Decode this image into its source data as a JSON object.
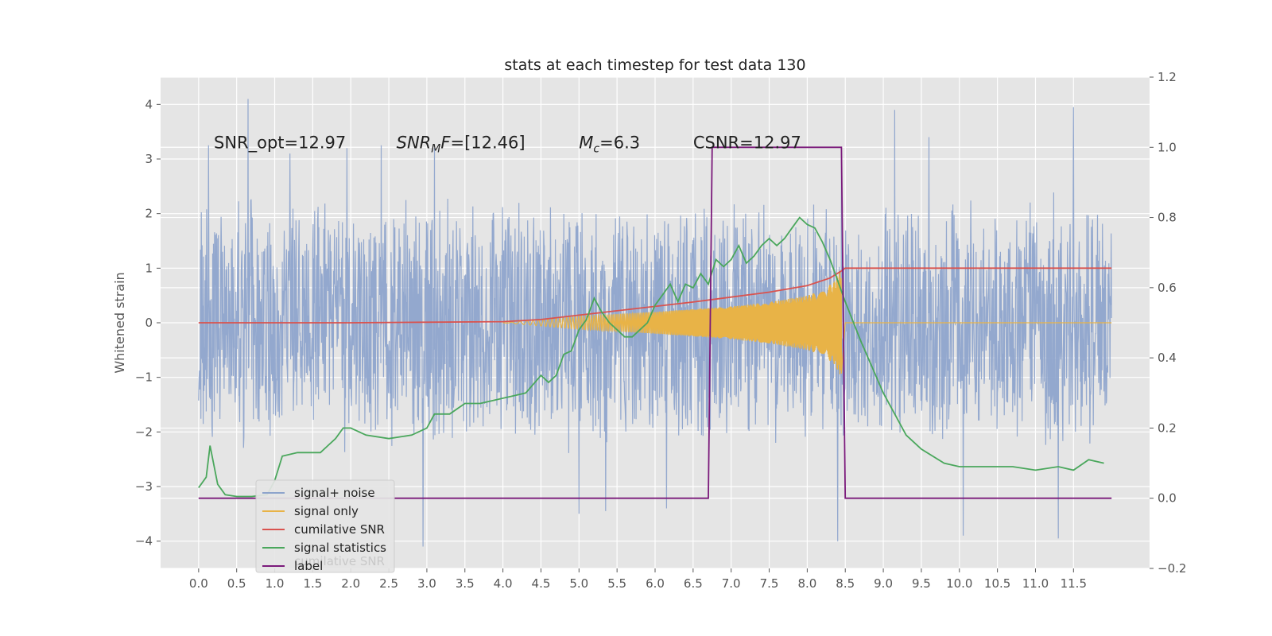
{
  "chart_data": {
    "type": "line",
    "title": "stats at each timestep for test data 130",
    "ylabel": "Whitened strain",
    "ylabel_right": "",
    "xlim": [
      -0.5,
      12.5
    ],
    "ylim": [
      -4.5,
      4.5
    ],
    "ylim_right": [
      -0.2,
      1.2
    ],
    "x_ticks": [
      0.0,
      0.5,
      1.0,
      1.5,
      2.0,
      2.5,
      3.0,
      3.5,
      4.0,
      4.5,
      5.0,
      5.5,
      6.0,
      6.5,
      7.0,
      7.5,
      8.0,
      8.5,
      9.0,
      9.5,
      10.0,
      10.5,
      11.0,
      11.5
    ],
    "x_tick_labels": [
      "0.0",
      "0.5",
      "1.0",
      "1.5",
      "2.0",
      "2.5",
      "3.0",
      "3.5",
      "4.0",
      "4.5",
      "5.0",
      "5.5",
      "6.0",
      "6.5",
      "7.0",
      "7.5",
      "8.0",
      "8.5",
      "9.0",
      "9.5",
      "10.0",
      "10.5",
      "11.0",
      "11.5"
    ],
    "y_ticks": [
      -4,
      -3,
      -2,
      -1,
      0,
      1,
      2,
      3,
      4
    ],
    "y_tick_labels": [
      "−4",
      "−3",
      "−2",
      "−1",
      "0",
      "1",
      "2",
      "3",
      "4"
    ],
    "y_ticks_right": [
      -0.2,
      0.0,
      0.2,
      0.4,
      0.6,
      0.8,
      1.0,
      1.2
    ],
    "y_tick_labels_right": [
      "−0.2",
      "0.0",
      "0.2",
      "0.4",
      "0.6",
      "0.8",
      "1.0",
      "1.2"
    ],
    "grid": true,
    "legend_position": "bottom-left",
    "annotations": [
      {
        "text": "SNR_opt=12.97",
        "x": 0.2,
        "y": 3.2
      },
      {
        "text": "SNR_MF=[12.46]",
        "x": 2.6,
        "y": 3.2
      },
      {
        "text": "M_c=6.3",
        "x": 5.0,
        "y": 3.2
      },
      {
        "text": "CSNR=12.97",
        "x": 6.5,
        "y": 3.2
      }
    ],
    "series": [
      {
        "name": "signal+ noise",
        "axis": "left",
        "color": "#8ea4cc",
        "kind": "noise",
        "x_range": [
          0.0,
          12.0
        ],
        "envelope": 2.4,
        "peaks": [
          {
            "x": 0.13,
            "y": 3.25
          },
          {
            "x": 0.65,
            "y": 4.1
          },
          {
            "x": 1.2,
            "y": 3.1
          },
          {
            "x": 1.95,
            "y": 3.2
          },
          {
            "x": 2.4,
            "y": 3.25
          },
          {
            "x": 3.1,
            "y": 3.2
          },
          {
            "x": 8.45,
            "y": 3.1
          },
          {
            "x": 9.15,
            "y": 3.9
          },
          {
            "x": 9.6,
            "y": 3.4
          },
          {
            "x": 11.5,
            "y": 3.95
          },
          {
            "x": 2.95,
            "y": -4.1
          },
          {
            "x": 8.4,
            "y": -4.0
          },
          {
            "x": 10.05,
            "y": -3.9
          },
          {
            "x": 11.3,
            "y": -3.95
          },
          {
            "x": 5.0,
            "y": -3.5
          },
          {
            "x": 5.35,
            "y": -3.45
          },
          {
            "x": 6.15,
            "y": -3.4
          }
        ]
      },
      {
        "name": "signal only",
        "axis": "left",
        "color": "#e8b347",
        "kind": "chirp",
        "x_start": 4.0,
        "x_merger": 8.45,
        "x_end": 12.0,
        "envelope_points": [
          [
            4.0,
            0.0
          ],
          [
            5.0,
            0.12
          ],
          [
            6.0,
            0.2
          ],
          [
            7.0,
            0.3
          ],
          [
            7.5,
            0.38
          ],
          [
            8.0,
            0.5
          ],
          [
            8.2,
            0.6
          ],
          [
            8.35,
            0.75
          ],
          [
            8.45,
            1.0
          ]
        ]
      },
      {
        "name": "cumilative SNR",
        "axis": "left",
        "color": "#d9534f",
        "x": [
          0.0,
          1.0,
          2.0,
          3.0,
          4.0,
          4.5,
          5.0,
          5.5,
          6.0,
          6.5,
          7.0,
          7.5,
          8.0,
          8.3,
          8.45,
          8.5,
          10.0,
          12.0
        ],
        "y": [
          0.0,
          0.0,
          0.0,
          0.01,
          0.02,
          0.06,
          0.14,
          0.22,
          0.3,
          0.38,
          0.47,
          0.56,
          0.68,
          0.82,
          0.95,
          1.0,
          1.0,
          1.0
        ]
      },
      {
        "name": "signal statistics",
        "axis": "right",
        "color": "#4aa75c",
        "x": [
          0.0,
          0.1,
          0.15,
          0.25,
          0.35,
          0.5,
          0.7,
          0.9,
          1.0,
          1.1,
          1.3,
          1.6,
          1.7,
          1.8,
          1.9,
          2.0,
          2.2,
          2.5,
          2.8,
          3.0,
          3.1,
          3.3,
          3.5,
          3.7,
          3.9,
          4.1,
          4.3,
          4.5,
          4.6,
          4.7,
          4.8,
          4.9,
          5.0,
          5.1,
          5.2,
          5.3,
          5.4,
          5.5,
          5.6,
          5.7,
          5.8,
          5.9,
          6.0,
          6.1,
          6.2,
          6.3,
          6.4,
          6.5,
          6.6,
          6.7,
          6.8,
          6.9,
          7.0,
          7.1,
          7.2,
          7.3,
          7.4,
          7.5,
          7.6,
          7.7,
          7.8,
          7.9,
          8.0,
          8.1,
          8.2,
          8.3,
          8.4,
          8.5,
          8.7,
          9.0,
          9.3,
          9.5,
          9.8,
          10.0,
          10.3,
          10.7,
          11.0,
          11.3,
          11.5,
          11.7,
          11.9
        ],
        "y": [
          0.03,
          0.06,
          0.15,
          0.04,
          0.01,
          0.005,
          0.005,
          0.01,
          0.05,
          0.12,
          0.13,
          0.13,
          0.15,
          0.17,
          0.2,
          0.2,
          0.18,
          0.17,
          0.18,
          0.2,
          0.24,
          0.24,
          0.27,
          0.27,
          0.28,
          0.29,
          0.3,
          0.35,
          0.33,
          0.35,
          0.41,
          0.42,
          0.48,
          0.51,
          0.57,
          0.53,
          0.5,
          0.48,
          0.46,
          0.46,
          0.48,
          0.5,
          0.55,
          0.58,
          0.61,
          0.56,
          0.61,
          0.6,
          0.64,
          0.61,
          0.68,
          0.66,
          0.68,
          0.72,
          0.67,
          0.69,
          0.72,
          0.74,
          0.72,
          0.74,
          0.77,
          0.8,
          0.78,
          0.77,
          0.73,
          0.68,
          0.62,
          0.56,
          0.45,
          0.3,
          0.18,
          0.14,
          0.1,
          0.09,
          0.09,
          0.09,
          0.08,
          0.09,
          0.08,
          0.11,
          0.1
        ]
      },
      {
        "name": "label",
        "axis": "right",
        "color": "#7b1a7b",
        "x": [
          0.0,
          6.7,
          6.75,
          8.45,
          8.5,
          12.0
        ],
        "y": [
          0.0,
          0.0,
          1.0,
          1.0,
          0.0,
          0.0
        ]
      }
    ],
    "legend_ghost_text": "cumilative SNR"
  }
}
